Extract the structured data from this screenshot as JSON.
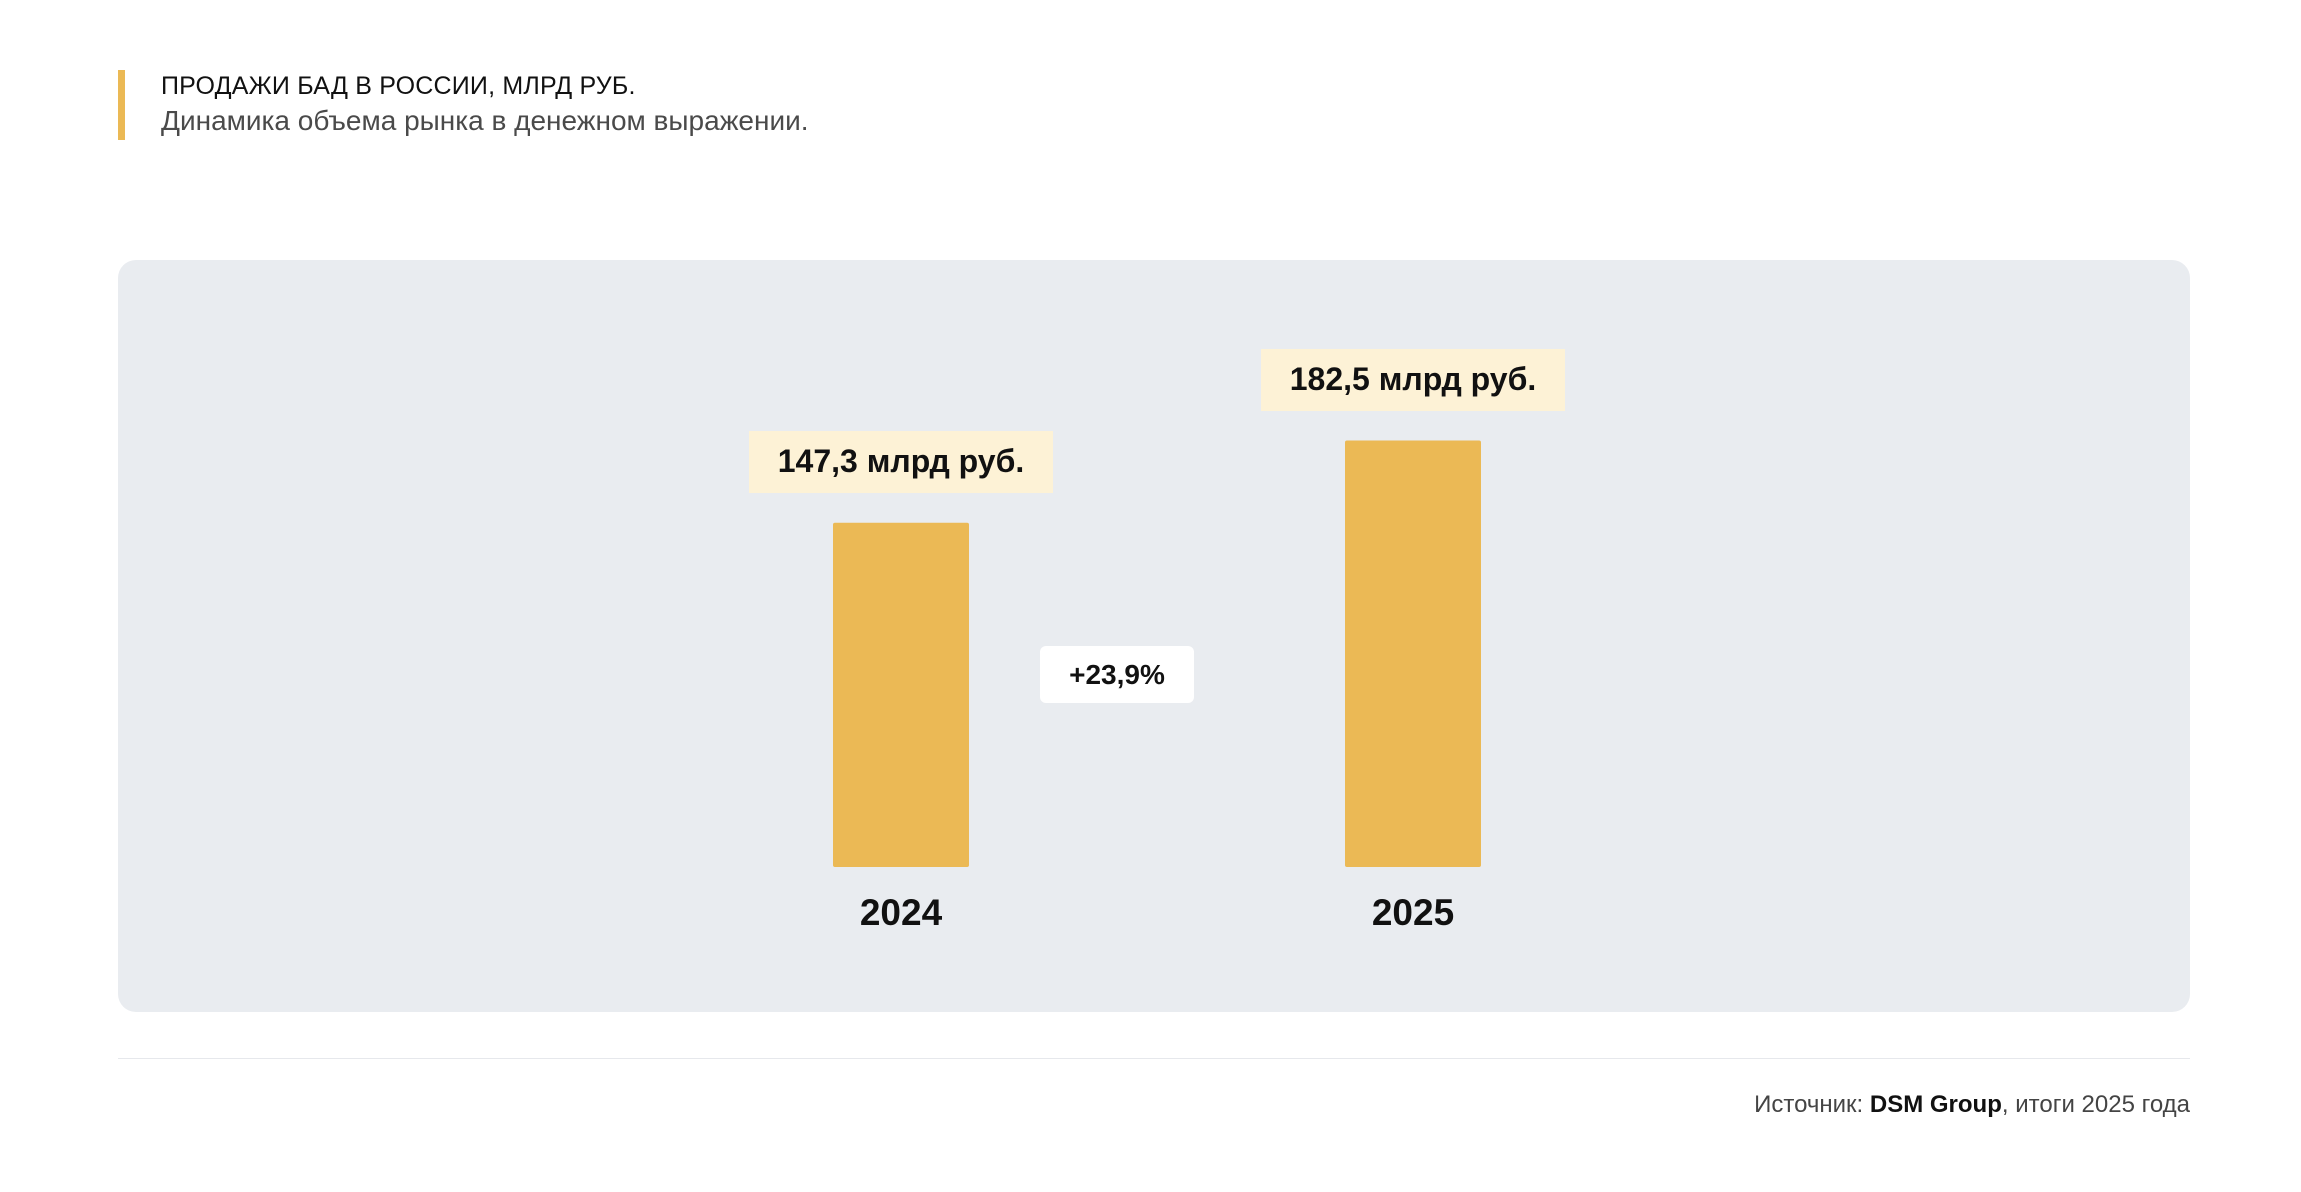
{
  "header": {
    "title": "ПРОДАЖИ БАД В РОССИИ, МЛРД РУБ.",
    "subtitle": "Динамика объема рынка в денежном выражении."
  },
  "colors": {
    "accent": "#ebb955",
    "bar": "#ebb955",
    "label_bg": "#fdf2d6",
    "panel_bg": "#e9ecf0"
  },
  "chart_data": {
    "type": "bar",
    "categories": [
      "2024",
      "2025"
    ],
    "values": [
      147.3,
      182.5
    ],
    "value_labels": [
      "147,3 млрд руб.",
      "182,5 млрд руб."
    ],
    "annotations": [
      "+23,9%"
    ],
    "ylim": [
      0,
      190
    ],
    "grid": false
  },
  "footer": {
    "prefix": "Источник: ",
    "source": "DSM Group",
    "suffix": ", итоги 2025 года"
  }
}
